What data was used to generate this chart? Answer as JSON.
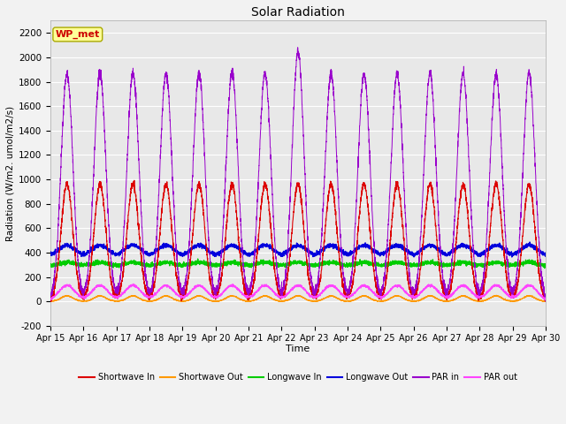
{
  "title": "Solar Radiation",
  "xlabel": "Time",
  "ylabel": "Radiation (W/m2. umol/m2/s)",
  "ylim": [
    -200,
    2300
  ],
  "yticks": [
    -200,
    0,
    200,
    400,
    600,
    800,
    1000,
    1200,
    1400,
    1600,
    1800,
    2000,
    2200
  ],
  "x_tick_labels": [
    "Apr 15",
    "Apr 16",
    "Apr 17",
    "Apr 18",
    "Apr 19",
    "Apr 20",
    "Apr 21",
    "Apr 22",
    "Apr 23",
    "Apr 24",
    "Apr 25",
    "Apr 26",
    "Apr 27",
    "Apr 28",
    "Apr 29",
    "Apr 30"
  ],
  "annotation_text": "WP_met",
  "annotation_color": "#cc0000",
  "annotation_bg": "#ffff99",
  "colors": {
    "shortwave_in": "#dd0000",
    "shortwave_out": "#ff9900",
    "longwave_in": "#00cc00",
    "longwave_out": "#0000dd",
    "par_in": "#9900cc",
    "par_out": "#ff44ff"
  },
  "legend_labels": [
    "Shortwave In",
    "Shortwave Out",
    "Longwave In",
    "Longwave Out",
    "PAR in",
    "PAR out"
  ],
  "n_days": 15,
  "background_color": "#e8e8e8",
  "grid_color": "#ffffff",
  "fig_width": 6.4,
  "fig_height": 4.8,
  "dpi": 100
}
